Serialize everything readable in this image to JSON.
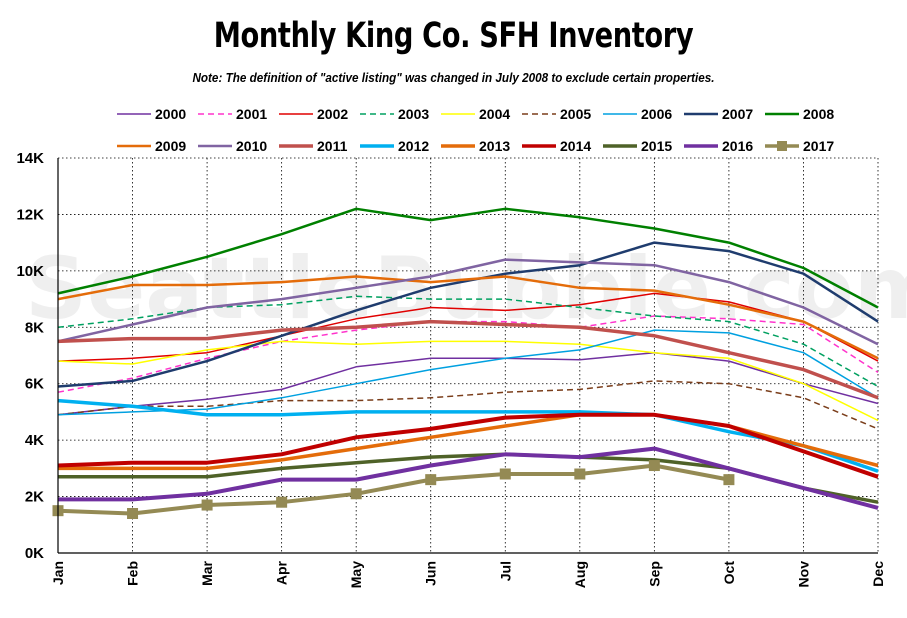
{
  "chart_data": {
    "type": "line",
    "title": "Monthly King Co. SFH Inventory",
    "subtitle": "Note: The definition of \"active listing\" was changed in July 2008 to exclude certain properties.",
    "watermark": "SeattleBubble.com",
    "categories": [
      "Jan",
      "Feb",
      "Mar",
      "Apr",
      "May",
      "Jun",
      "Jul",
      "Aug",
      "Sep",
      "Oct",
      "Nov",
      "Dec"
    ],
    "y_tick_labels": [
      "0K",
      "2K",
      "4K",
      "6K",
      "8K",
      "10K",
      "12K",
      "14K"
    ],
    "ylim": [
      0,
      14000
    ],
    "grid": "dotted",
    "legend_position": "top",
    "series": [
      {
        "name": "2000",
        "color": "#7030a0",
        "style": "solid",
        "width": 1.5,
        "values": [
          4900,
          5200,
          5450,
          5800,
          6600,
          6900,
          6900,
          6850,
          7100,
          6800,
          6000,
          5300
        ]
      },
      {
        "name": "2001",
        "color": "#ff33cc",
        "style": "dashed",
        "width": 1.5,
        "values": [
          5700,
          6200,
          6900,
          7500,
          7900,
          8200,
          8200,
          8000,
          8400,
          8300,
          8100,
          6400
        ]
      },
      {
        "name": "2002",
        "color": "#e00000",
        "style": "solid",
        "width": 1.5,
        "values": [
          6800,
          6900,
          7100,
          7700,
          8300,
          8700,
          8600,
          8800,
          9200,
          8900,
          8200,
          6800
        ]
      },
      {
        "name": "2003",
        "color": "#00a060",
        "style": "dashed",
        "width": 1.5,
        "values": [
          8000,
          8300,
          8700,
          8800,
          9100,
          9000,
          9000,
          8700,
          8400,
          8200,
          7400,
          5900
        ]
      },
      {
        "name": "2004",
        "color": "#ffff00",
        "style": "solid",
        "width": 1.5,
        "values": [
          6800,
          6700,
          7200,
          7500,
          7400,
          7500,
          7500,
          7400,
          7100,
          6900,
          6000,
          4700
        ]
      },
      {
        "name": "2005",
        "color": "#7a3d1a",
        "style": "dashed",
        "width": 1.5,
        "values": [
          4900,
          5200,
          5200,
          5400,
          5400,
          5500,
          5700,
          5800,
          6100,
          6000,
          5500,
          4400
        ]
      },
      {
        "name": "2006",
        "color": "#00a0e0",
        "style": "solid",
        "width": 1.5,
        "values": [
          4900,
          5000,
          5100,
          5500,
          6000,
          6500,
          6900,
          7200,
          7900,
          7800,
          7100,
          5500
        ]
      },
      {
        "name": "2007",
        "color": "#1f3c6e",
        "style": "solid",
        "width": 2.5,
        "values": [
          5900,
          6100,
          6800,
          7700,
          8600,
          9400,
          9900,
          10200,
          11000,
          10700,
          9900,
          8200
        ]
      },
      {
        "name": "2008",
        "color": "#008000",
        "style": "solid",
        "width": 2.5,
        "values": [
          9200,
          9800,
          10500,
          11300,
          12200,
          11800,
          12200,
          11900,
          11500,
          11000,
          10100,
          8700
        ]
      },
      {
        "name": "2009",
        "color": "#e46c0a",
        "style": "solid",
        "width": 2.5,
        "values": [
          9000,
          9500,
          9500,
          9600,
          9800,
          9600,
          9800,
          9400,
          9300,
          8800,
          8200,
          6900
        ]
      },
      {
        "name": "2010",
        "color": "#8064a2",
        "style": "solid",
        "width": 2.5,
        "values": [
          7500,
          8100,
          8700,
          9000,
          9400,
          9800,
          10400,
          10300,
          10200,
          9600,
          8700,
          7400
        ]
      },
      {
        "name": "2011",
        "color": "#c0504d",
        "style": "solid",
        "width": 3.5,
        "values": [
          7500,
          7600,
          7600,
          7900,
          8000,
          8200,
          8100,
          8000,
          7700,
          7100,
          6500,
          5500
        ]
      },
      {
        "name": "2012",
        "color": "#00b0f0",
        "style": "solid",
        "width": 3.5,
        "values": [
          5400,
          5200,
          4900,
          4900,
          5000,
          5000,
          5000,
          5000,
          4900,
          4300,
          3800,
          2900
        ]
      },
      {
        "name": "2013",
        "color": "#e46c0a",
        "style": "solid",
        "width": 3.5,
        "values": [
          3000,
          3000,
          3000,
          3300,
          3700,
          4100,
          4500,
          4900,
          4900,
          4500,
          3800,
          3100
        ]
      },
      {
        "name": "2014",
        "color": "#c00000",
        "style": "solid",
        "width": 4,
        "values": [
          3100,
          3200,
          3200,
          3500,
          4100,
          4400,
          4800,
          4900,
          4900,
          4500,
          3600,
          2700
        ]
      },
      {
        "name": "2015",
        "color": "#4f6228",
        "style": "solid",
        "width": 3.5,
        "values": [
          2700,
          2700,
          2700,
          3000,
          3200,
          3400,
          3500,
          3400,
          3300,
          3000,
          2300,
          1800
        ]
      },
      {
        "name": "2016",
        "color": "#7030a0",
        "style": "solid",
        "width": 4,
        "values": [
          1900,
          1900,
          2100,
          2600,
          2600,
          3100,
          3500,
          3400,
          3700,
          3000,
          2300,
          1600
        ]
      },
      {
        "name": "2017",
        "color": "#948a54",
        "style": "dashed-markers",
        "width": 4,
        "values": [
          1500,
          1400,
          1700,
          1800,
          2100,
          2600,
          2800,
          2800,
          3100,
          2600,
          null,
          null
        ]
      }
    ]
  }
}
